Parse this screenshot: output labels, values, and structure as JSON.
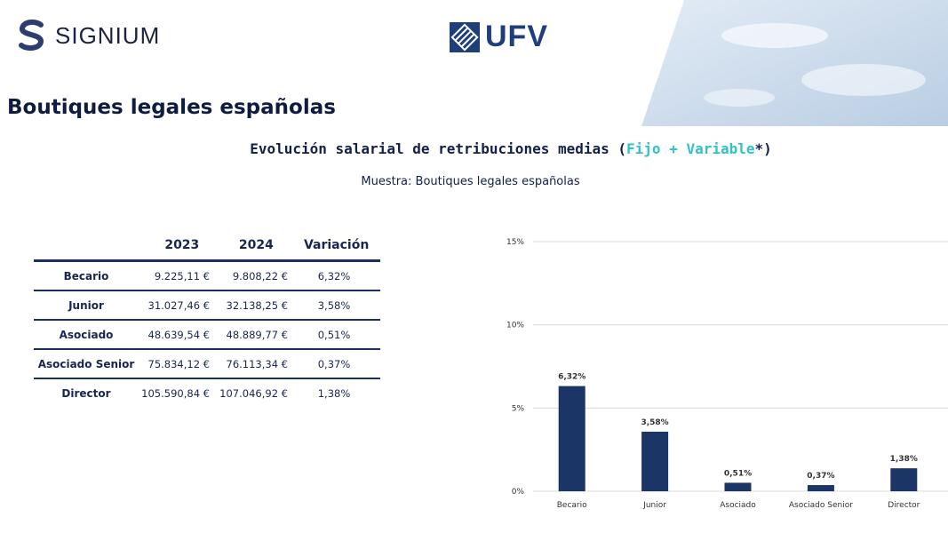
{
  "header": {
    "logo_left": "SIGNIUM",
    "logo_center": "UFV"
  },
  "page_title": "Boutiques legales españolas",
  "subtitle": {
    "part1": "Evolución salarial de retribuciones medias (",
    "highlight": "Fijo + Variable",
    "part2": "*)"
  },
  "sample_label": "Muestra: Boutiques legales españolas",
  "table": {
    "headers": [
      "",
      "2023",
      "2024",
      "Variación"
    ],
    "rows": [
      [
        "Becario",
        "9.225,11 €",
        "9.808,22 €",
        "6,32%"
      ],
      [
        "Junior",
        "31.027,46 €",
        "32.138,25 €",
        "3,58%"
      ],
      [
        "Asociado",
        "48.639,54 €",
        "48.889,77 €",
        "0,51%"
      ],
      [
        "Asociado Senior",
        "75.834,12 €",
        "76.113,34 €",
        "0,37%"
      ],
      [
        "Director",
        "105.590,84 €",
        "107.046,92 €",
        "1,38%"
      ]
    ]
  },
  "colors": {
    "navy": "#1b3566",
    "accent": "#2fc2c9"
  },
  "chart_data": {
    "type": "bar",
    "categories": [
      "Becario",
      "Junior",
      "Asociado",
      "Asociado Senior",
      "Director"
    ],
    "values": [
      6.32,
      3.58,
      0.51,
      0.37,
      1.38
    ],
    "data_labels": [
      "6,32%",
      "3,58%",
      "0,51%",
      "0,37%",
      "1,38%"
    ],
    "yticks": [
      0,
      5,
      10,
      15
    ],
    "ytick_labels": [
      "0%",
      "5%",
      "10%",
      "15%"
    ],
    "ylim": [
      0,
      15
    ],
    "grid": true,
    "legend": "none",
    "title": "",
    "xlabel": "",
    "ylabel": ""
  }
}
